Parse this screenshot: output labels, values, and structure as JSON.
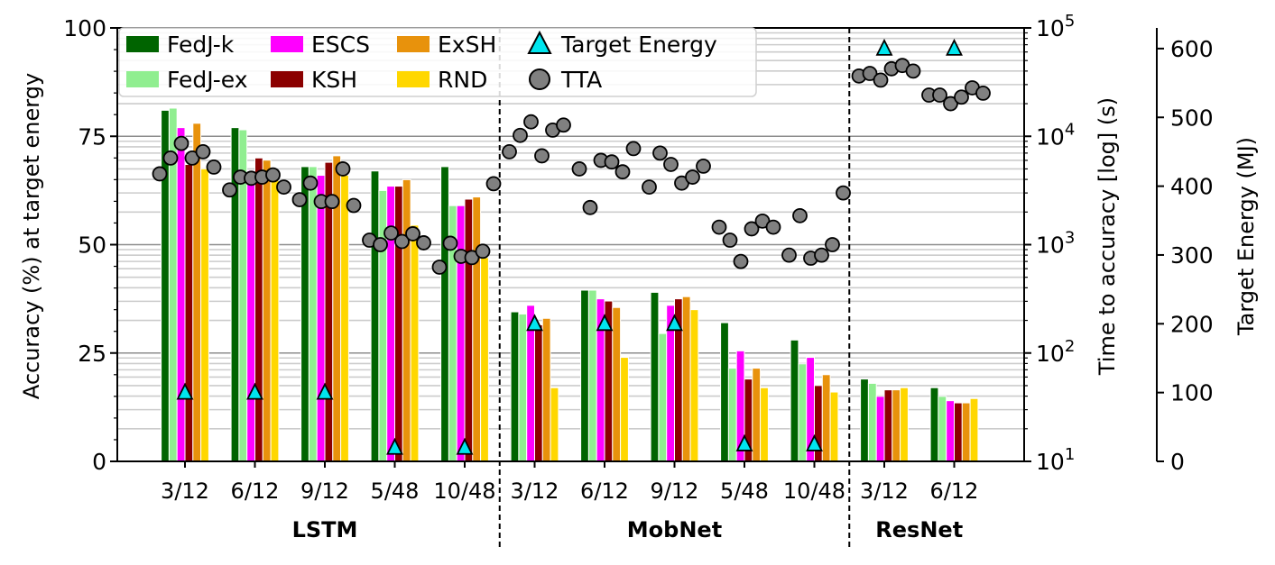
{
  "chart_data": {
    "type": "bar",
    "axes": {
      "left": {
        "label": "Accuracy (%) at target energy",
        "ylim": [
          0,
          100
        ],
        "ticks": [
          "0",
          "25",
          "50",
          "75",
          "100"
        ]
      },
      "right_time": {
        "label": "Time to accuracy [log] (s)",
        "scale": "log",
        "ylim": [
          10,
          100000
        ],
        "ticks": [
          {
            "base": "10",
            "exp": "1"
          },
          {
            "base": "10",
            "exp": "2"
          },
          {
            "base": "10",
            "exp": "3"
          },
          {
            "base": "10",
            "exp": "4"
          },
          {
            "base": "10",
            "exp": "5"
          }
        ]
      },
      "right_energy": {
        "label": "Target Energy (MJ)",
        "ylim": [
          0,
          630
        ],
        "ticks": [
          "0",
          "100",
          "200",
          "300",
          "400",
          "500",
          "600"
        ]
      }
    },
    "grid": true,
    "legend": {
      "placement": "top-left",
      "columns": 4,
      "entries": [
        {
          "label": "FedJ-k",
          "kind": "bar",
          "color": "#006400"
        },
        {
          "label": "FedJ-ex",
          "kind": "bar",
          "color": "#90ee90"
        },
        {
          "label": "ESCS",
          "kind": "bar",
          "color": "#ff00ff"
        },
        {
          "label": "KSH",
          "kind": "bar",
          "color": "#8b0000"
        },
        {
          "label": "ExSH",
          "kind": "bar",
          "color": "#e8920c"
        },
        {
          "label": "RND",
          "kind": "bar",
          "color": "#ffd700"
        },
        {
          "label": "Target Energy",
          "kind": "triangle",
          "color": "#00e5ee"
        },
        {
          "label": "TTA",
          "kind": "circle",
          "color": "#808080"
        }
      ]
    },
    "groups": [
      {
        "name": "LSTM",
        "categories": [
          "3/12",
          "6/12",
          "9/12",
          "5/48",
          "10/48"
        ]
      },
      {
        "name": "MobNet",
        "categories": [
          "3/12",
          "6/12",
          "9/12",
          "5/48",
          "10/48"
        ]
      },
      {
        "name": "ResNet",
        "categories": [
          "3/12",
          "6/12"
        ]
      }
    ],
    "series": [
      {
        "name": "FedJ-k",
        "color": "#006400",
        "values": [
          81,
          77,
          68,
          67,
          68,
          34.5,
          39.5,
          39,
          32,
          28,
          19,
          17
        ]
      },
      {
        "name": "FedJ-ex",
        "color": "#90ee90",
        "values": [
          81.5,
          76.5,
          68,
          62.5,
          59,
          34,
          39.5,
          29.5,
          21.5,
          22.5,
          18,
          15
        ]
      },
      {
        "name": "ESCS",
        "color": "#ff00ff",
        "values": [
          77,
          66,
          66,
          63.5,
          59,
          36,
          37.5,
          36,
          25.5,
          24,
          15,
          14
        ]
      },
      {
        "name": "KSH",
        "color": "#8b0000",
        "values": [
          68.5,
          70,
          69,
          63.5,
          60.5,
          31.5,
          37,
          37.5,
          19,
          17.5,
          16.5,
          13.5
        ]
      },
      {
        "name": "ExSH",
        "color": "#e8920c",
        "values": [
          78,
          69.5,
          70.5,
          65,
          61,
          33,
          35.5,
          38,
          21.5,
          20,
          16.5,
          13.5
        ]
      },
      {
        "name": "RND",
        "color": "#ffd700",
        "values": [
          67.5,
          65,
          66,
          54.5,
          47,
          17,
          24,
          35,
          17,
          16,
          17,
          14.5
        ]
      }
    ],
    "target_energy_mj": [
      100,
      100,
      100,
      20,
      20,
      200,
      200,
      200,
      25,
      25,
      600,
      600
    ],
    "tta_seconds": [
      [
        4500,
        6300,
        8600,
        6300,
        7200,
        5200
      ],
      [
        3200,
        4200,
        4100,
        4200,
        4400,
        3400
      ],
      [
        2600,
        3700,
        2500,
        2500,
        5000,
        2300
      ],
      [
        1100,
        1000,
        1280,
        1070,
        1260,
        1040
      ],
      [
        620,
        1030,
        780,
        760,
        870,
        3650
      ],
      [
        7200,
        10200,
        13600,
        6600,
        11400,
        12700
      ],
      [
        5000,
        2200,
        6000,
        5800,
        4700,
        7700
      ],
      [
        3400,
        7000,
        5500,
        3700,
        4200,
        5300
      ],
      [
        1450,
        1100,
        700,
        1400,
        1650,
        1450
      ],
      [
        800,
        1850,
        750,
        800,
        1000,
        3000
      ],
      [
        36000,
        38000,
        33000,
        42000,
        45000,
        40000
      ],
      [
        24000,
        24000,
        20000,
        23000,
        28000,
        25000
      ]
    ]
  }
}
